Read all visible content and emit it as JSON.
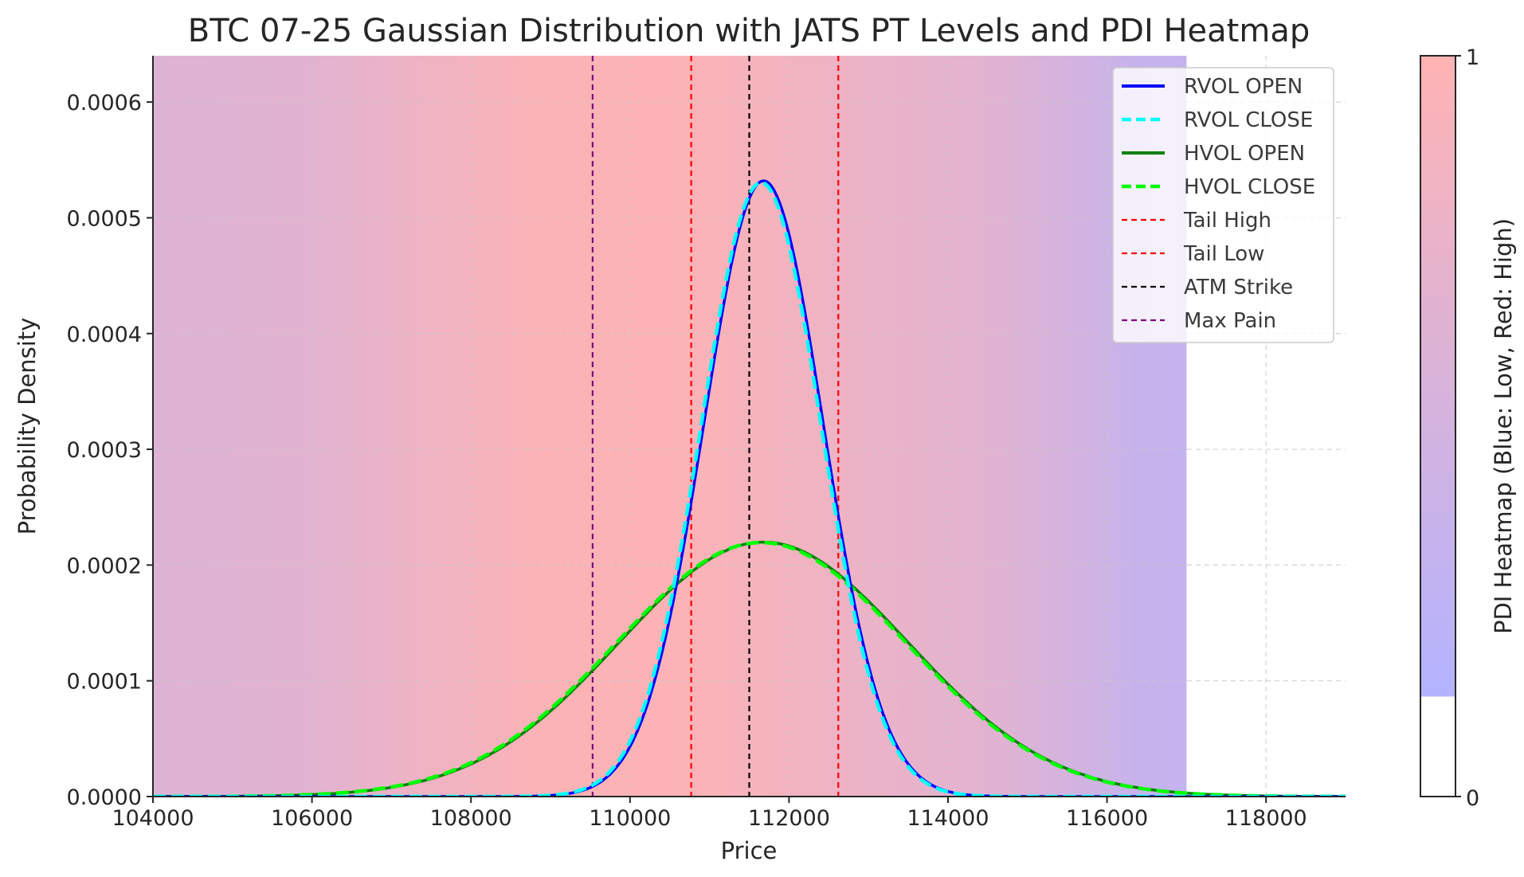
{
  "chart_data": {
    "type": "line",
    "title": "BTC 07-25 Gaussian Distribution with JATS PT Levels and PDI Heatmap",
    "xlabel": "Price",
    "ylabel": "Probability Density",
    "xlim": [
      104000,
      119000
    ],
    "ylim": [
      0,
      0.00064
    ],
    "x_ticks": [
      104000,
      106000,
      108000,
      110000,
      112000,
      114000,
      116000,
      118000
    ],
    "x_tick_labels": [
      "104000",
      "106000",
      "108000",
      "110000",
      "112000",
      "114000",
      "116000",
      "118000"
    ],
    "y_ticks": [
      0,
      0.0001,
      0.0002,
      0.0003,
      0.0004,
      0.0005,
      0.0006
    ],
    "y_tick_labels": [
      "0.0000",
      "0.0001",
      "0.0002",
      "0.0003",
      "0.0004",
      "0.0005",
      "0.0006"
    ],
    "grid": true,
    "legend_position": "top-right",
    "series": [
      {
        "name": "RVOL OPEN",
        "kind": "gaussian",
        "mean": 111680,
        "sd": 750,
        "color": "#0000ff",
        "style": "solid"
      },
      {
        "name": "RVOL CLOSE",
        "kind": "gaussian",
        "mean": 111650,
        "sd": 752,
        "color": "#00ffff",
        "style": "dashed"
      },
      {
        "name": "HVOL OPEN",
        "kind": "gaussian",
        "mean": 111680,
        "sd": 1815,
        "color": "#008000",
        "style": "solid"
      },
      {
        "name": "HVOL CLOSE",
        "kind": "gaussian",
        "mean": 111650,
        "sd": 1818,
        "color": "#00ff00",
        "style": "dashed"
      }
    ],
    "levels": [
      {
        "name": "Tail High",
        "x": 110770,
        "color": "#ff0000"
      },
      {
        "name": "Tail Low",
        "x": 112620,
        "color": "#ff0000"
      },
      {
        "name": "ATM Strike",
        "x": 111500,
        "color": "#000000"
      },
      {
        "name": "Max Pain",
        "x": 109530,
        "color": "#800080"
      }
    ],
    "heatmap": {
      "x_range": [
        104000,
        117000
      ],
      "stops": [
        {
          "x": 104000,
          "value": 0.55
        },
        {
          "x": 106000,
          "value": 0.62
        },
        {
          "x": 108000,
          "value": 0.86
        },
        {
          "x": 109000,
          "value": 0.96
        },
        {
          "x": 110500,
          "value": 0.97
        },
        {
          "x": 111600,
          "value": 0.88
        },
        {
          "x": 113000,
          "value": 0.74
        },
        {
          "x": 114500,
          "value": 0.62
        },
        {
          "x": 115700,
          "value": 0.4
        },
        {
          "x": 116400,
          "value": 0.25
        },
        {
          "x": 117000,
          "value": 0.22
        }
      ]
    },
    "colorbar": {
      "label": "PDI Heatmap (Blue: Low, Red: High)",
      "min_label": "0",
      "max_label": "1",
      "colored_from": 0.135
    }
  }
}
